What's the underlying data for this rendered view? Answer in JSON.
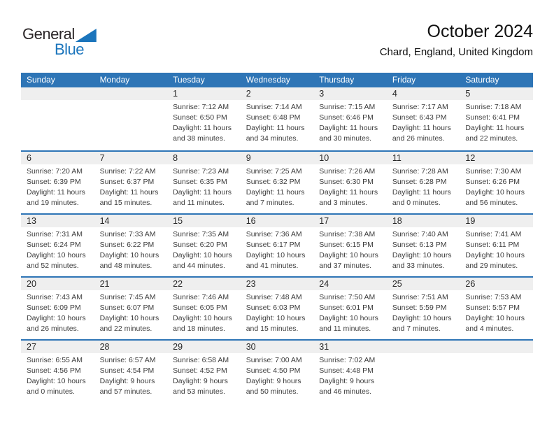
{
  "logo": {
    "line1": "General",
    "line2": "Blue"
  },
  "header": {
    "title": "October 2024",
    "subtitle": "Chard, England, United Kingdom"
  },
  "colors": {
    "header_blue": "#2e75b6",
    "row_divider": "#2e75b6",
    "date_strip_gray": "#efefef",
    "logo_blue": "#1b75bc"
  },
  "calendar": {
    "day_headers": [
      "Sunday",
      "Monday",
      "Tuesday",
      "Wednesday",
      "Thursday",
      "Friday",
      "Saturday"
    ],
    "weeks": [
      [
        null,
        null,
        {
          "date": "1",
          "sunrise": "Sunrise: 7:12 AM",
          "sunset": "Sunset: 6:50 PM",
          "daylight": "Daylight: 11 hours and 38 minutes."
        },
        {
          "date": "2",
          "sunrise": "Sunrise: 7:14 AM",
          "sunset": "Sunset: 6:48 PM",
          "daylight": "Daylight: 11 hours and 34 minutes."
        },
        {
          "date": "3",
          "sunrise": "Sunrise: 7:15 AM",
          "sunset": "Sunset: 6:46 PM",
          "daylight": "Daylight: 11 hours and 30 minutes."
        },
        {
          "date": "4",
          "sunrise": "Sunrise: 7:17 AM",
          "sunset": "Sunset: 6:43 PM",
          "daylight": "Daylight: 11 hours and 26 minutes."
        },
        {
          "date": "5",
          "sunrise": "Sunrise: 7:18 AM",
          "sunset": "Sunset: 6:41 PM",
          "daylight": "Daylight: 11 hours and 22 minutes."
        }
      ],
      [
        {
          "date": "6",
          "sunrise": "Sunrise: 7:20 AM",
          "sunset": "Sunset: 6:39 PM",
          "daylight": "Daylight: 11 hours and 19 minutes."
        },
        {
          "date": "7",
          "sunrise": "Sunrise: 7:22 AM",
          "sunset": "Sunset: 6:37 PM",
          "daylight": "Daylight: 11 hours and 15 minutes."
        },
        {
          "date": "8",
          "sunrise": "Sunrise: 7:23 AM",
          "sunset": "Sunset: 6:35 PM",
          "daylight": "Daylight: 11 hours and 11 minutes."
        },
        {
          "date": "9",
          "sunrise": "Sunrise: 7:25 AM",
          "sunset": "Sunset: 6:32 PM",
          "daylight": "Daylight: 11 hours and 7 minutes."
        },
        {
          "date": "10",
          "sunrise": "Sunrise: 7:26 AM",
          "sunset": "Sunset: 6:30 PM",
          "daylight": "Daylight: 11 hours and 3 minutes."
        },
        {
          "date": "11",
          "sunrise": "Sunrise: 7:28 AM",
          "sunset": "Sunset: 6:28 PM",
          "daylight": "Daylight: 11 hours and 0 minutes."
        },
        {
          "date": "12",
          "sunrise": "Sunrise: 7:30 AM",
          "sunset": "Sunset: 6:26 PM",
          "daylight": "Daylight: 10 hours and 56 minutes."
        }
      ],
      [
        {
          "date": "13",
          "sunrise": "Sunrise: 7:31 AM",
          "sunset": "Sunset: 6:24 PM",
          "daylight": "Daylight: 10 hours and 52 minutes."
        },
        {
          "date": "14",
          "sunrise": "Sunrise: 7:33 AM",
          "sunset": "Sunset: 6:22 PM",
          "daylight": "Daylight: 10 hours and 48 minutes."
        },
        {
          "date": "15",
          "sunrise": "Sunrise: 7:35 AM",
          "sunset": "Sunset: 6:20 PM",
          "daylight": "Daylight: 10 hours and 44 minutes."
        },
        {
          "date": "16",
          "sunrise": "Sunrise: 7:36 AM",
          "sunset": "Sunset: 6:17 PM",
          "daylight": "Daylight: 10 hours and 41 minutes."
        },
        {
          "date": "17",
          "sunrise": "Sunrise: 7:38 AM",
          "sunset": "Sunset: 6:15 PM",
          "daylight": "Daylight: 10 hours and 37 minutes."
        },
        {
          "date": "18",
          "sunrise": "Sunrise: 7:40 AM",
          "sunset": "Sunset: 6:13 PM",
          "daylight": "Daylight: 10 hours and 33 minutes."
        },
        {
          "date": "19",
          "sunrise": "Sunrise: 7:41 AM",
          "sunset": "Sunset: 6:11 PM",
          "daylight": "Daylight: 10 hours and 29 minutes."
        }
      ],
      [
        {
          "date": "20",
          "sunrise": "Sunrise: 7:43 AM",
          "sunset": "Sunset: 6:09 PM",
          "daylight": "Daylight: 10 hours and 26 minutes."
        },
        {
          "date": "21",
          "sunrise": "Sunrise: 7:45 AM",
          "sunset": "Sunset: 6:07 PM",
          "daylight": "Daylight: 10 hours and 22 minutes."
        },
        {
          "date": "22",
          "sunrise": "Sunrise: 7:46 AM",
          "sunset": "Sunset: 6:05 PM",
          "daylight": "Daylight: 10 hours and 18 minutes."
        },
        {
          "date": "23",
          "sunrise": "Sunrise: 7:48 AM",
          "sunset": "Sunset: 6:03 PM",
          "daylight": "Daylight: 10 hours and 15 minutes."
        },
        {
          "date": "24",
          "sunrise": "Sunrise: 7:50 AM",
          "sunset": "Sunset: 6:01 PM",
          "daylight": "Daylight: 10 hours and 11 minutes."
        },
        {
          "date": "25",
          "sunrise": "Sunrise: 7:51 AM",
          "sunset": "Sunset: 5:59 PM",
          "daylight": "Daylight: 10 hours and 7 minutes."
        },
        {
          "date": "26",
          "sunrise": "Sunrise: 7:53 AM",
          "sunset": "Sunset: 5:57 PM",
          "daylight": "Daylight: 10 hours and 4 minutes."
        }
      ],
      [
        {
          "date": "27",
          "sunrise": "Sunrise: 6:55 AM",
          "sunset": "Sunset: 4:56 PM",
          "daylight": "Daylight: 10 hours and 0 minutes."
        },
        {
          "date": "28",
          "sunrise": "Sunrise: 6:57 AM",
          "sunset": "Sunset: 4:54 PM",
          "daylight": "Daylight: 9 hours and 57 minutes."
        },
        {
          "date": "29",
          "sunrise": "Sunrise: 6:58 AM",
          "sunset": "Sunset: 4:52 PM",
          "daylight": "Daylight: 9 hours and 53 minutes."
        },
        {
          "date": "30",
          "sunrise": "Sunrise: 7:00 AM",
          "sunset": "Sunset: 4:50 PM",
          "daylight": "Daylight: 9 hours and 50 minutes."
        },
        {
          "date": "31",
          "sunrise": "Sunrise: 7:02 AM",
          "sunset": "Sunset: 4:48 PM",
          "daylight": "Daylight: 9 hours and 46 minutes."
        },
        null,
        null
      ]
    ]
  }
}
